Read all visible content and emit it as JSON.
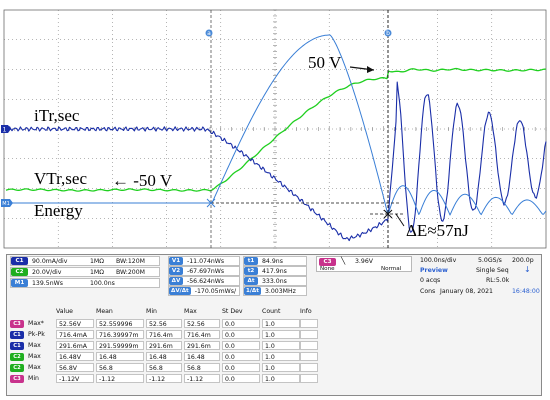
{
  "waveform_labels": {
    "itr": "iTr,sec",
    "vtr": "VTr,sec",
    "vtr_annot": "← -50 V",
    "energy": "Energy",
    "v50": "50 V",
    "delta_e": "ΔE≈57nJ"
  },
  "cursor_markers": {
    "a": "a",
    "b": "b"
  },
  "channel_markers": {
    "ch1": "1",
    "m1": "M1"
  },
  "colors": {
    "ch1": "#1a2ea8",
    "ch2": "#1fcf1f",
    "math": "#3a7fd6",
    "ch3": "#c8328c",
    "grid": "#6c6c6c",
    "screen": "#ffffff"
  },
  "channel_settings": [
    {
      "badge": "C1",
      "color": "#1a2ea8",
      "scale": "90.0mA/div",
      "coupling": "1MΩ",
      "bw": "BW:120M"
    },
    {
      "badge": "C2",
      "color": "#1fae1f",
      "scale": "20.0V/div",
      "coupling": "1MΩ",
      "bw": "BW:200M"
    },
    {
      "badge": "M1",
      "color": "#3a7fd6",
      "scale": "139.5nWs",
      "coupling": "100.0ns",
      "bw": ""
    }
  ],
  "cursor_readouts": {
    "left": [
      {
        "badge": "V1",
        "value": "-11.074nWs"
      },
      {
        "badge": "V2",
        "value": "-67.697nWs"
      },
      {
        "badge": "ΔV",
        "value": "-56.624nWs"
      },
      {
        "badge": "ΔV/Δt",
        "value": "-170.05mWs/"
      }
    ],
    "right": [
      {
        "badge": "t1",
        "value": "84.9ns"
      },
      {
        "badge": "t2",
        "value": "417.9ns"
      },
      {
        "badge": "Δt",
        "value": "333.0ns"
      },
      {
        "badge": "1/Δt",
        "value": "3.003MHz"
      }
    ]
  },
  "trigger": {
    "badge": "C3",
    "level": "3.96V",
    "filter": "None",
    "mode": "Normal"
  },
  "timebase": {
    "scale": "100.0ns/div",
    "rate": "5.0GS/s",
    "offset": "200.0p",
    "preview": "Preview",
    "seq": "Single Seq",
    "acqs": "0 acqs",
    "rl": "RL:5.0k",
    "cons": "Cons",
    "date": "January 08, 2021",
    "time": "16:48:00"
  },
  "measure": {
    "headers": [
      "Value",
      "Mean",
      "Min",
      "Max",
      "St Dev",
      "Count",
      "Info"
    ],
    "rows": [
      {
        "badge": "C3",
        "color": "#c8328c",
        "name": "Max*",
        "value": "52.56V",
        "mean": "52.559996",
        "min": "52.56",
        "max": "52.56",
        "stdev": "0.0",
        "count": "1.0"
      },
      {
        "badge": "C1",
        "color": "#1a2ea8",
        "name": "Pk-Pk",
        "value": "716.4mA",
        "mean": "716.39997m",
        "min": "716.4m",
        "max": "716.4m",
        "stdev": "0.0",
        "count": "1.0"
      },
      {
        "badge": "C1",
        "color": "#1a2ea8",
        "name": "Max",
        "value": "291.6mA",
        "mean": "291.59999m",
        "min": "291.6m",
        "max": "291.6m",
        "stdev": "0.0",
        "count": "1.0"
      },
      {
        "badge": "C2",
        "color": "#1fae1f",
        "name": "Max",
        "value": "16.48V",
        "mean": "16.48",
        "min": "16.48",
        "max": "16.48",
        "stdev": "0.0",
        "count": "1.0"
      },
      {
        "badge": "C2",
        "color": "#1fae1f",
        "name": "Max",
        "value": "56.8V",
        "mean": "56.8",
        "min": "56.8",
        "max": "56.8",
        "stdev": "0.0",
        "count": "1.0"
      },
      {
        "badge": "C3",
        "color": "#c8328c",
        "name": "Min",
        "value": "-1.12V",
        "mean": "-1.12",
        "min": "-1.12",
        "max": "-1.12",
        "stdev": "0.0",
        "count": "1.0"
      }
    ]
  }
}
